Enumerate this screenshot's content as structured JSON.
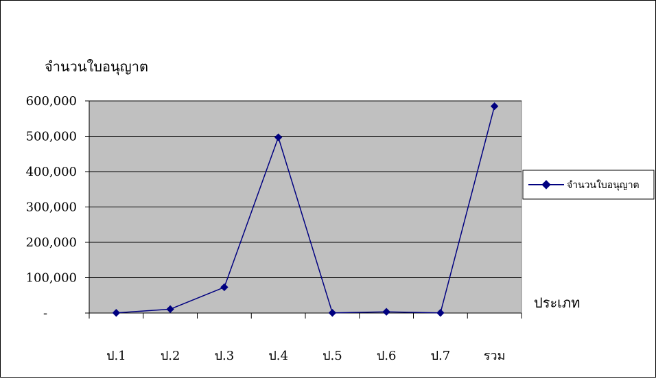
{
  "chart_data": {
    "type": "line",
    "title": "",
    "ylabel": "จำนวนใบอนุญาต",
    "xlabel": "ประเภท",
    "categories": [
      "ป.1",
      "ป.2",
      "ป.3",
      "ป.4",
      "ป.5",
      "ป.6",
      "ป.7",
      "รวม"
    ],
    "y_ticks": [
      {
        "value": 0,
        "label": "-"
      },
      {
        "value": 100000,
        "label": "100,000"
      },
      {
        "value": 200000,
        "label": "200,000"
      },
      {
        "value": 300000,
        "label": "300,000"
      },
      {
        "value": 400000,
        "label": "400,000"
      },
      {
        "value": 500000,
        "label": "500,000"
      },
      {
        "value": 600000,
        "label": "600,000"
      }
    ],
    "ylim": [
      0,
      600000
    ],
    "grid": true,
    "legend_position": "right",
    "series": [
      {
        "name": "จำนวนใบอนุญาต",
        "color": "#000080",
        "marker": "diamond",
        "values": [
          500,
          11000,
          73000,
          497000,
          500,
          3500,
          500,
          585000
        ]
      }
    ],
    "colors": {
      "plot_background": "#c0c0c0",
      "gridline": "#000000",
      "series": "#000080"
    }
  }
}
